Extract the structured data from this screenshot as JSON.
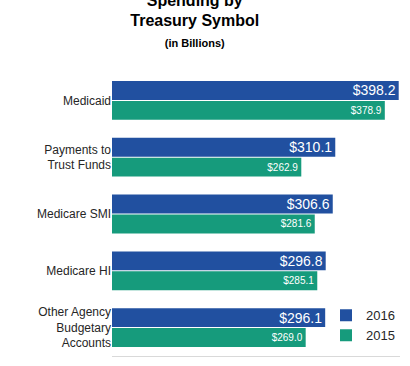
{
  "chart_data": {
    "type": "bar",
    "title": "Spending by Treasury Symbol",
    "subtitle": "(in Billions)",
    "orientation": "horizontal",
    "categories": [
      "Medicaid",
      "Payments to Trust Funds",
      "Medicare SMI",
      "Medicare HI",
      "Other Agency Budgetary Accounts"
    ],
    "series": [
      {
        "name": "2016",
        "color": "#2150a0",
        "values": [
          398.2,
          310.1,
          306.6,
          296.8,
          296.1
        ],
        "value_labels": [
          "$398.2",
          "$310.1",
          "$306.6",
          "$296.8",
          "$296.1"
        ]
      },
      {
        "name": "2015",
        "color": "#169b7c",
        "values": [
          378.9,
          262.9,
          281.6,
          285.1,
          269.0
        ],
        "value_labels": [
          "$378.9",
          "$262.9",
          "$281.6",
          "$285.1",
          "$269.0"
        ]
      }
    ],
    "xlim": [
      0,
      400
    ],
    "data_labels": true,
    "tick_labels": "y",
    "grid": false,
    "legend": "bottom right"
  }
}
